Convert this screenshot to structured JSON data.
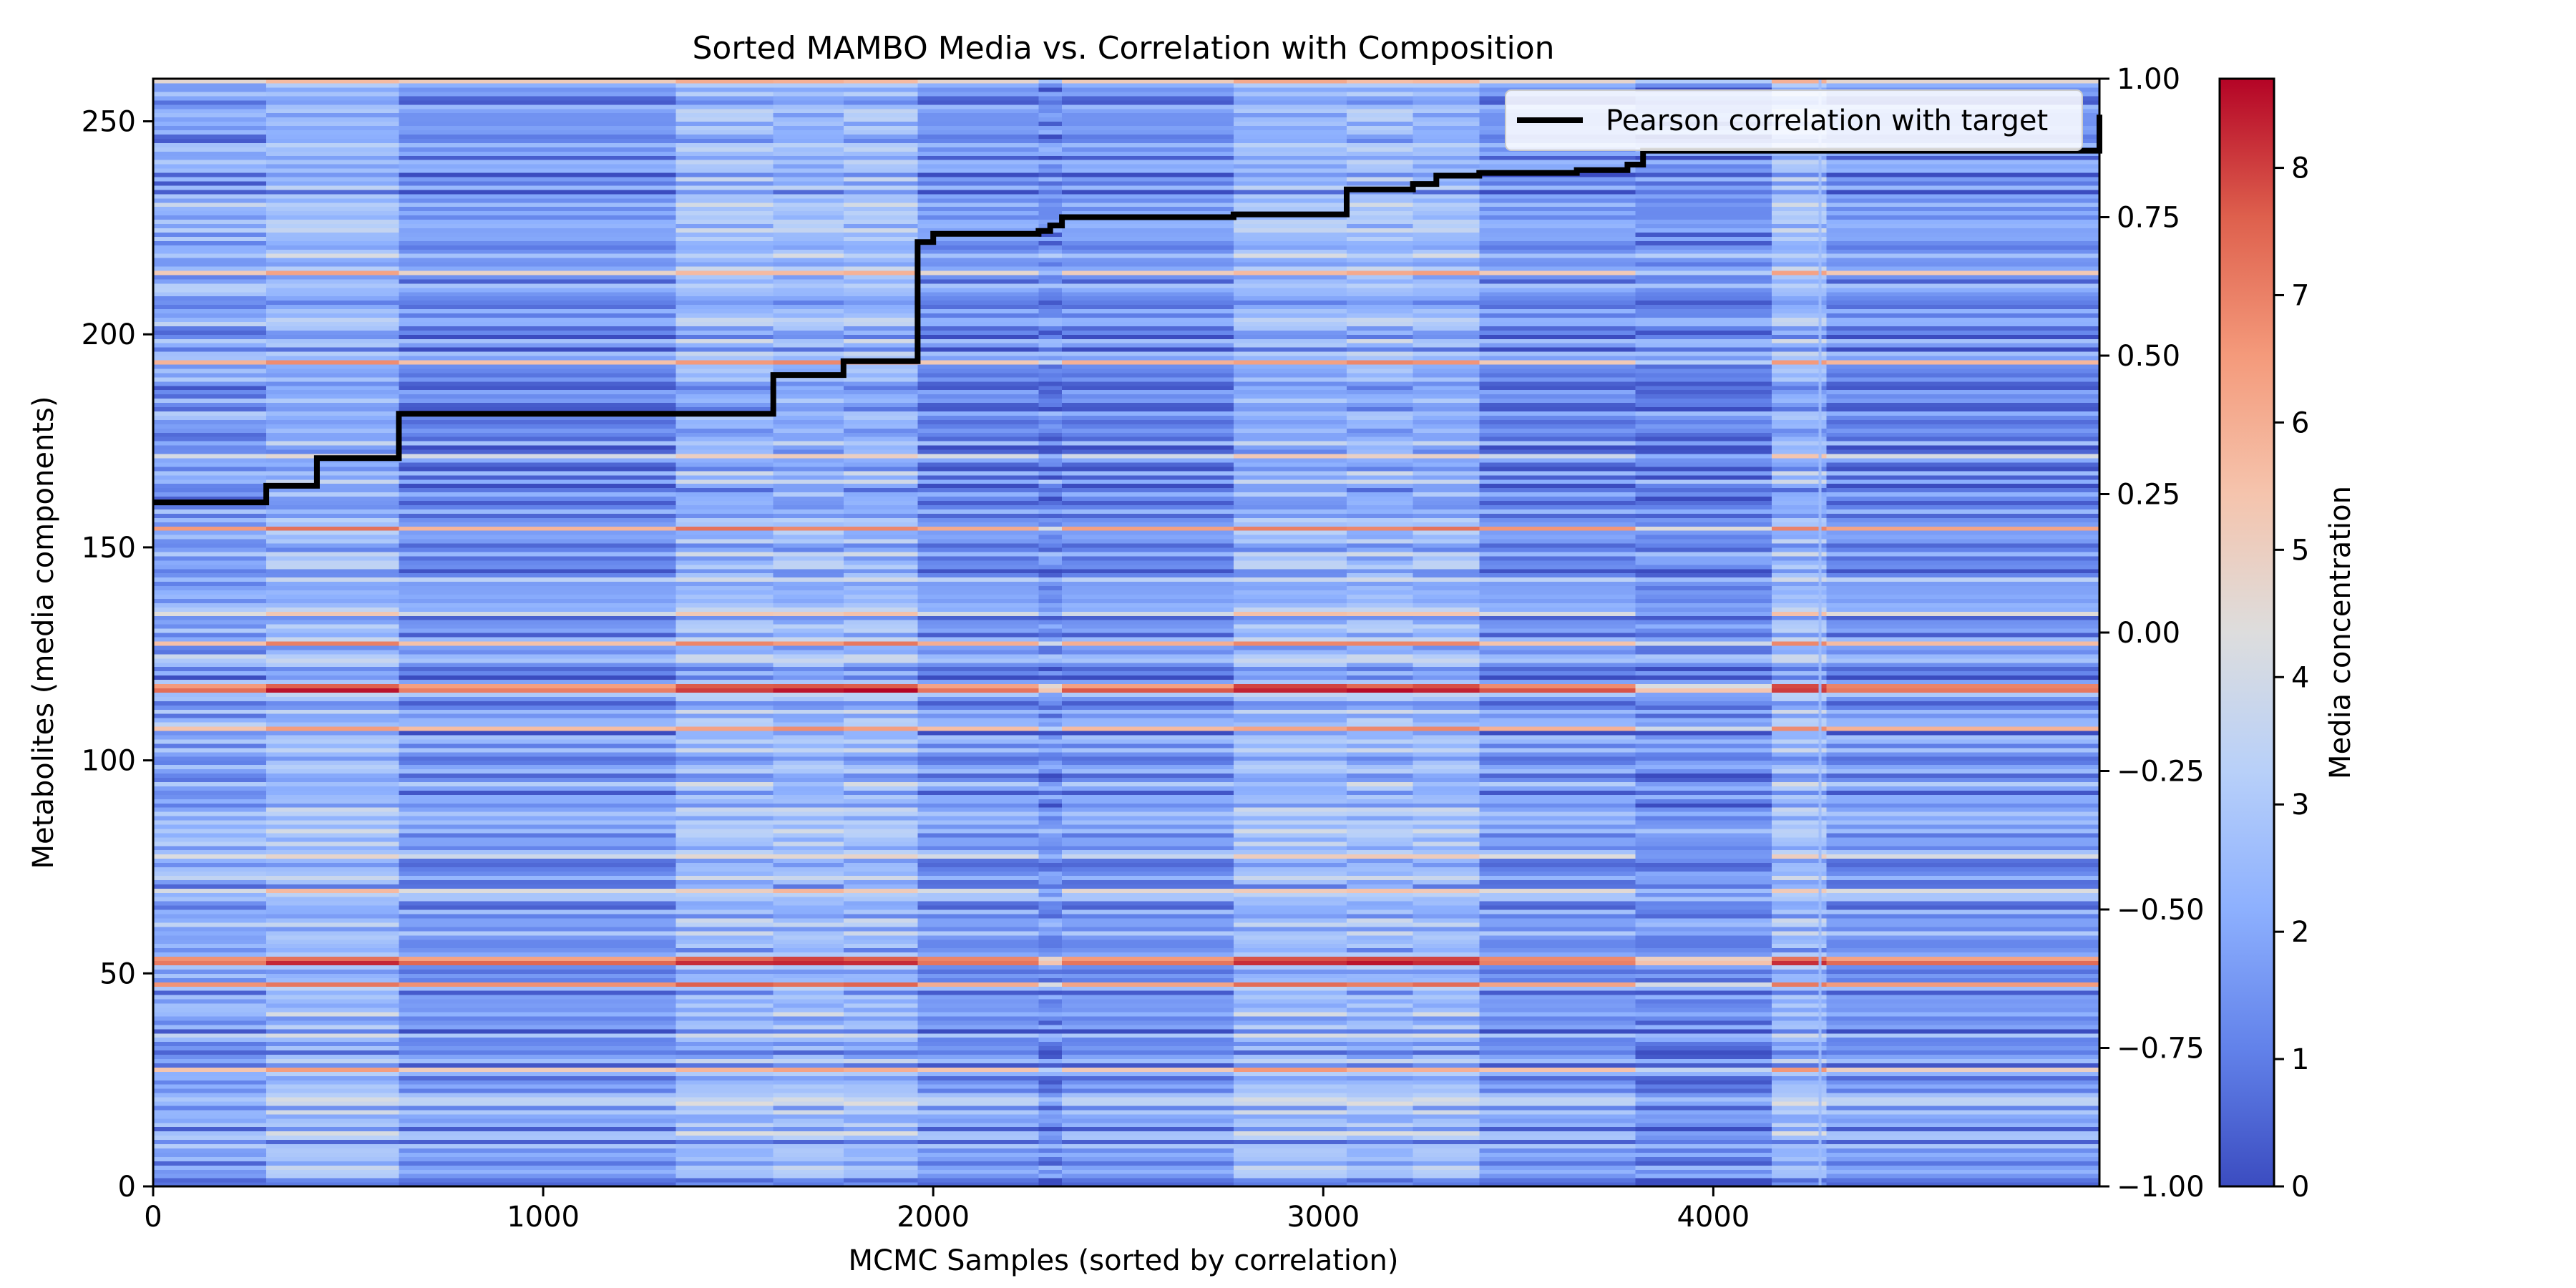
{
  "chart_data": {
    "type": "heatmap",
    "title": "Sorted MAMBO Media vs. Correlation with Composition",
    "xlabel": "MCMC Samples (sorted by correlation)",
    "ylabel": "Metabolites (media components)",
    "y2label": "",
    "colorbar_label": "Media concentration",
    "xlim": [
      0,
      4990
    ],
    "ylim": [
      0,
      260
    ],
    "y2lim": [
      -1.0,
      1.0
    ],
    "clim": [
      0,
      8.7
    ],
    "colormap": "coolwarm",
    "x_ticks": [
      "0",
      "1000",
      "2000",
      "3000",
      "4000"
    ],
    "x_tick_values": [
      0,
      1000,
      2000,
      3000,
      4000
    ],
    "y_ticks": [
      "0",
      "50",
      "100",
      "150",
      "200",
      "250"
    ],
    "y_tick_values": [
      0,
      50,
      100,
      150,
      200,
      250
    ],
    "y2_ticks": [
      "−1.00",
      "−0.75",
      "−0.50",
      "−0.25",
      "0.00",
      "0.25",
      "0.50",
      "0.75",
      "1.00"
    ],
    "y2_tick_values": [
      -1.0,
      -0.75,
      -0.5,
      -0.25,
      0.0,
      0.25,
      0.5,
      0.75,
      1.0
    ],
    "colorbar_ticks": [
      "0",
      "1",
      "2",
      "3",
      "4",
      "5",
      "6",
      "7",
      "8"
    ],
    "colorbar_tick_values": [
      0,
      1,
      2,
      3,
      4,
      5,
      6,
      7,
      8
    ],
    "legend": {
      "entries": [
        "Pearson correlation with target"
      ],
      "placement": "upper right"
    },
    "column_blocks": [
      {
        "start": 0,
        "end": 290,
        "style": 0
      },
      {
        "start": 290,
        "end": 630,
        "style": 1
      },
      {
        "start": 630,
        "end": 1340,
        "style": 2
      },
      {
        "start": 1340,
        "end": 1590,
        "style": 3
      },
      {
        "start": 1590,
        "end": 1770,
        "style": 1
      },
      {
        "start": 1770,
        "end": 1960,
        "style": 3
      },
      {
        "start": 1960,
        "end": 2270,
        "style": 2
      },
      {
        "start": 2270,
        "end": 2330,
        "style": 4
      },
      {
        "start": 2330,
        "end": 2770,
        "style": 2
      },
      {
        "start": 2770,
        "end": 3060,
        "style": 1
      },
      {
        "start": 3060,
        "end": 3230,
        "style": 3
      },
      {
        "start": 3230,
        "end": 3400,
        "style": 1
      },
      {
        "start": 3400,
        "end": 3800,
        "style": 2
      },
      {
        "start": 3800,
        "end": 4150,
        "style": 4
      },
      {
        "start": 4150,
        "end": 4290,
        "style": 3
      },
      {
        "start": 4290,
        "end": 4990,
        "style": 2
      }
    ],
    "hot_rows": [
      {
        "row": 27,
        "value": 5.6
      },
      {
        "row": 47,
        "value": 6.8
      },
      {
        "row": 52,
        "value": 7.6
      },
      {
        "row": 53,
        "value": 7.0
      },
      {
        "row": 69,
        "value": 4.8
      },
      {
        "row": 77,
        "value": 4.4
      },
      {
        "row": 107,
        "value": 6.0
      },
      {
        "row": 116,
        "value": 7.8
      },
      {
        "row": 117,
        "value": 7.0
      },
      {
        "row": 127,
        "value": 6.2
      },
      {
        "row": 134,
        "value": 4.6
      },
      {
        "row": 154,
        "value": 6.6
      },
      {
        "row": 171,
        "value": 4.4
      },
      {
        "row": 193,
        "value": 6.0
      },
      {
        "row": 214,
        "value": 5.4
      },
      {
        "row": 259,
        "value": 5.2
      }
    ],
    "series": [
      {
        "name": "Pearson correlation with target",
        "type": "step",
        "color": "#000000",
        "x": [
          0,
          290,
          420,
          630,
          1590,
          1770,
          1960,
          2000,
          2270,
          2300,
          2330,
          2770,
          3060,
          3230,
          3290,
          3400,
          3650,
          3780,
          3820,
          4990
        ],
        "y": [
          0.235,
          0.265,
          0.315,
          0.395,
          0.465,
          0.49,
          0.705,
          0.72,
          0.725,
          0.735,
          0.75,
          0.755,
          0.8,
          0.81,
          0.825,
          0.83,
          0.835,
          0.845,
          0.87,
          0.935
        ]
      }
    ]
  }
}
